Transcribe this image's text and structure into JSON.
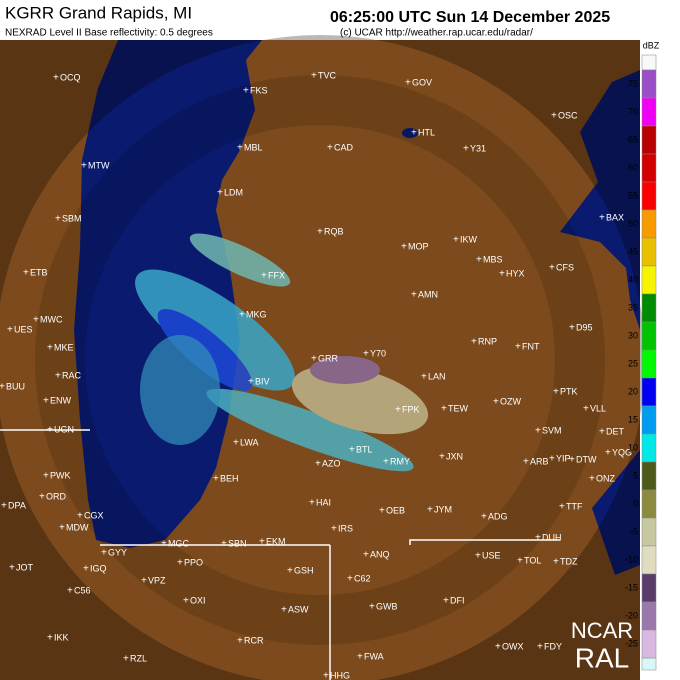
{
  "header": {
    "station": "KGRR Grand Rapids, MI",
    "product": "NEXRAD Level II Base reflectivity: 0.5 degrees",
    "time": "06:25:00 UTC Sun 14 December 2025",
    "credit": "(c) UCAR http://weather.rap.ucar.edu/radar/"
  },
  "legend": {
    "unit": "dBZ",
    "levels": [
      {
        "value": 75,
        "color": "#9a4fc7"
      },
      {
        "value": 70,
        "color": "#f000f5"
      },
      {
        "value": 65,
        "color": "#b80000"
      },
      {
        "value": 60,
        "color": "#d20000"
      },
      {
        "value": 55,
        "color": "#fa0000"
      },
      {
        "value": 50,
        "color": "#f89a00"
      },
      {
        "value": 45,
        "color": "#e8c000"
      },
      {
        "value": 40,
        "color": "#f8f400"
      },
      {
        "value": 35,
        "color": "#008c00"
      },
      {
        "value": 30,
        "color": "#00c400"
      },
      {
        "value": 25,
        "color": "#00f800"
      },
      {
        "value": 20,
        "color": "#0000f0"
      },
      {
        "value": 15,
        "color": "#009cf0"
      },
      {
        "value": 10,
        "color": "#00e8e8"
      },
      {
        "value": 5,
        "color": "#4c5a1c"
      },
      {
        "value": 0,
        "color": "#8a8a40"
      },
      {
        "value": -5,
        "color": "#c8c8a0"
      },
      {
        "value": -10,
        "color": "#e0dcc0"
      },
      {
        "value": -15,
        "color": "#5a3c6a"
      },
      {
        "value": -20,
        "color": "#9a78aa"
      },
      {
        "value": -25,
        "color": "#d8b8e0"
      }
    ]
  },
  "stations": [
    "OCQ",
    "TVC",
    "GOV",
    "FKS",
    "HTL",
    "OSC",
    "MTW",
    "MBL",
    "CAD",
    "Y31",
    "LDM",
    "SBM",
    "BAX",
    "RQB",
    "IKW",
    "MOP",
    "MBS",
    "HYX",
    "CFS",
    "ETB",
    "FFX",
    "AMN",
    "MKG",
    "UES",
    "MWC",
    "D95",
    "RNP",
    "FNT",
    "MKE",
    "GRR",
    "Y70",
    "RAC",
    "BIV",
    "LAN",
    "BUU",
    "PTK",
    "ENW",
    "FPK",
    "TEW",
    "OZW",
    "VLL",
    "UGN",
    "SVM",
    "DET",
    "LWA",
    "BTL",
    "JXN",
    "ARB",
    "YIP",
    "DTW",
    "YQG",
    "PWK",
    "BEH",
    "AZO",
    "RMY",
    "ONZ",
    "OEB",
    "HAI",
    "ORD",
    "DPA",
    "JYM",
    "ADG",
    "TTF",
    "CGX",
    "MDW",
    "IRS",
    "DUH",
    "GYY",
    "MGC",
    "SBN",
    "EKM",
    "ANQ",
    "USE",
    "TOL",
    "TDZ",
    "PPO",
    "JOT",
    "IGQ",
    "GSH",
    "VPZ",
    "C62",
    "C56",
    "OXI",
    "ASW",
    "GWB",
    "DFI",
    "IKK",
    "RCR",
    "OWX",
    "FDY",
    "RZL",
    "FWA",
    "HHG"
  ],
  "logo": {
    "line1": "NCAR",
    "line2": "RAL"
  }
}
